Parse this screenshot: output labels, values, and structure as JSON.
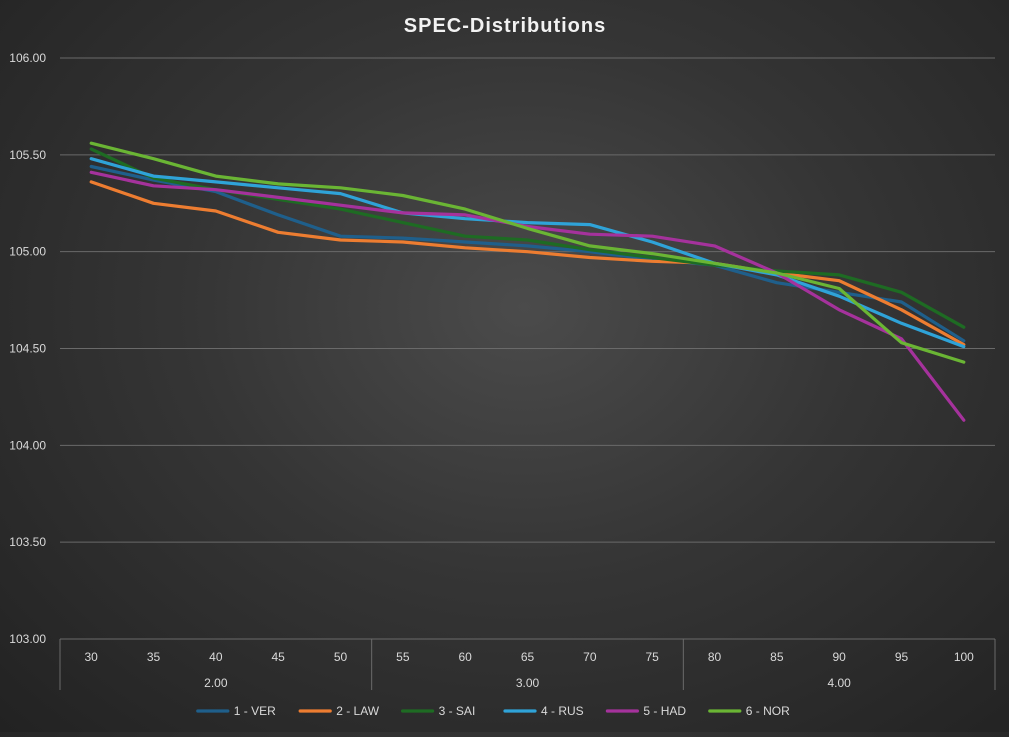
{
  "chart_data": {
    "type": "line",
    "title": "SPEC-Distributions",
    "xlabel": "",
    "ylabel": "",
    "categories": [
      "30",
      "35",
      "40",
      "45",
      "50",
      "55",
      "60",
      "65",
      "70",
      "75",
      "80",
      "85",
      "90",
      "95",
      "100"
    ],
    "groups": [
      {
        "label": "2.00",
        "span": 5
      },
      {
        "label": "3.00",
        "span": 5
      },
      {
        "label": "4.00",
        "span": 5
      }
    ],
    "ylim": [
      103.0,
      106.0
    ],
    "yticks": [
      "103.00",
      "103.50",
      "104.00",
      "104.50",
      "105.00",
      "105.50",
      "106.00"
    ],
    "grid": true,
    "legend_position": "bottom",
    "series": [
      {
        "name": "1 - VER",
        "color": "#1f5f8b",
        "values": [
          105.44,
          105.37,
          105.31,
          105.19,
          105.08,
          105.07,
          105.05,
          105.03,
          105.0,
          104.96,
          104.93,
          104.84,
          104.79,
          104.74,
          104.54
        ]
      },
      {
        "name": "2 - LAW",
        "color": "#ed7d31",
        "values": [
          105.36,
          105.25,
          105.21,
          105.1,
          105.06,
          105.05,
          105.02,
          105.0,
          104.97,
          104.95,
          104.94,
          104.89,
          104.85,
          104.7,
          104.52
        ]
      },
      {
        "name": "3 - SAI",
        "color": "#1e6b23",
        "values": [
          105.53,
          105.38,
          105.32,
          105.27,
          105.22,
          105.15,
          105.08,
          105.06,
          105.01,
          104.97,
          104.93,
          104.9,
          104.88,
          104.79,
          104.61
        ]
      },
      {
        "name": "4 - RUS",
        "color": "#2fa3d8",
        "values": [
          105.48,
          105.39,
          105.36,
          105.33,
          105.3,
          105.2,
          105.17,
          105.15,
          105.14,
          105.05,
          104.94,
          104.88,
          104.77,
          104.63,
          104.51
        ]
      },
      {
        "name": "5 - HAD",
        "color": "#a5329c",
        "values": [
          105.41,
          105.34,
          105.32,
          105.28,
          105.24,
          105.2,
          105.19,
          105.13,
          105.09,
          105.08,
          105.03,
          104.89,
          104.7,
          104.55,
          104.13
        ]
      },
      {
        "name": "6 - NOR",
        "color": "#6ab534",
        "values": [
          105.56,
          105.48,
          105.39,
          105.35,
          105.33,
          105.29,
          105.22,
          105.12,
          105.03,
          104.99,
          104.94,
          104.89,
          104.81,
          104.53,
          104.43
        ]
      }
    ]
  }
}
